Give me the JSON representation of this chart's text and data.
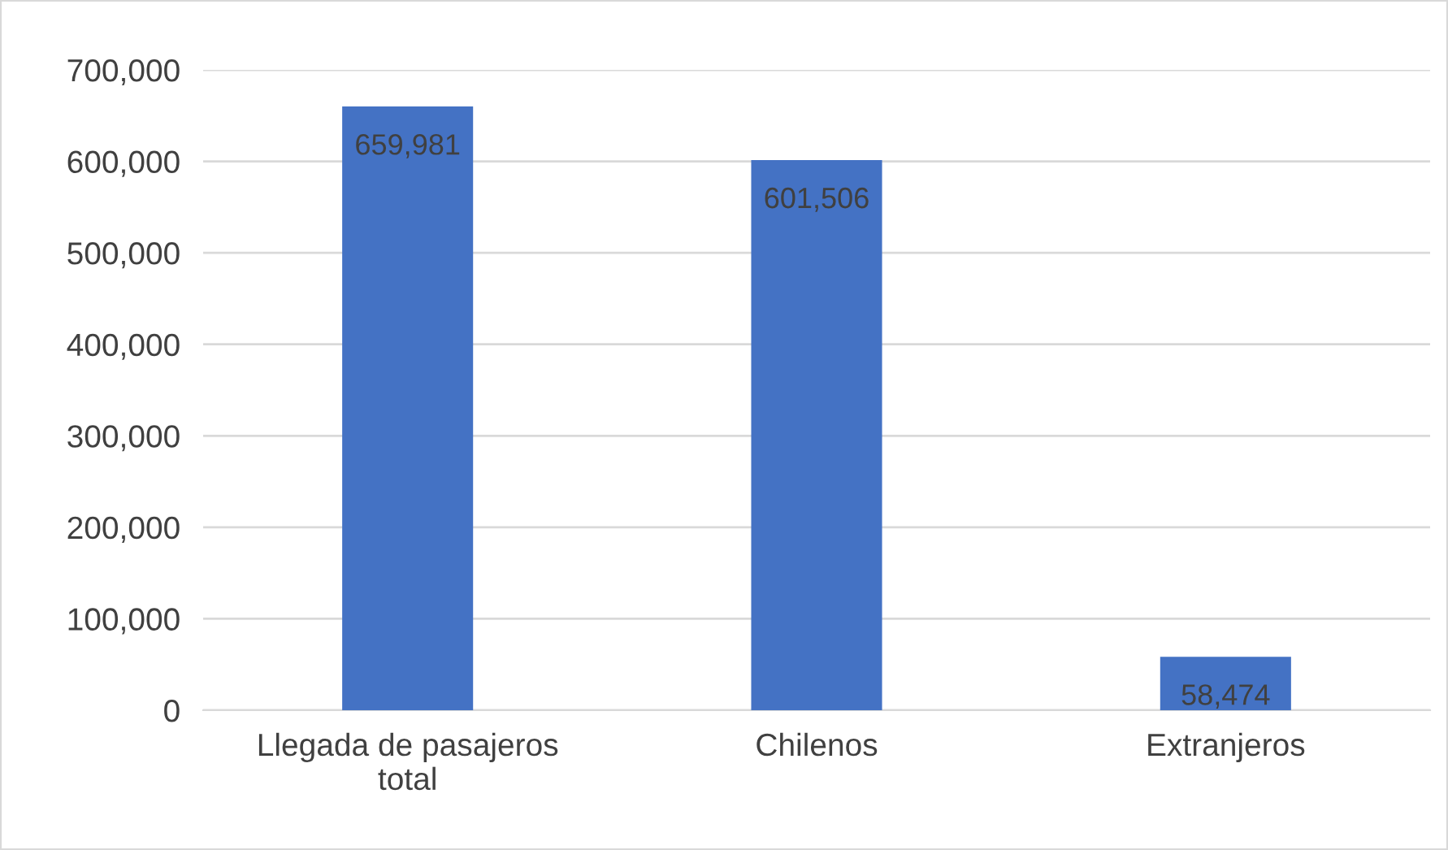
{
  "chart_data": {
    "type": "bar",
    "categories": [
      "Llegada de pasajeros total",
      "Chilenos",
      "Extranjeros"
    ],
    "values": [
      659981,
      601506,
      58474
    ],
    "value_labels": [
      "659,981",
      "601,506",
      "58,474"
    ],
    "color": "#4472c4",
    "ylim": [
      0,
      700000
    ],
    "yticks": [
      {
        "value": 0,
        "label": "0"
      },
      {
        "value": 100000,
        "label": "100,000"
      },
      {
        "value": 200000,
        "label": "200,000"
      },
      {
        "value": 300000,
        "label": "300,000"
      },
      {
        "value": 400000,
        "label": "400,000"
      },
      {
        "value": 500000,
        "label": "500,000"
      },
      {
        "value": 600000,
        "label": "600,000"
      },
      {
        "value": 700000,
        "label": "700,000"
      }
    ],
    "grid": "y"
  }
}
